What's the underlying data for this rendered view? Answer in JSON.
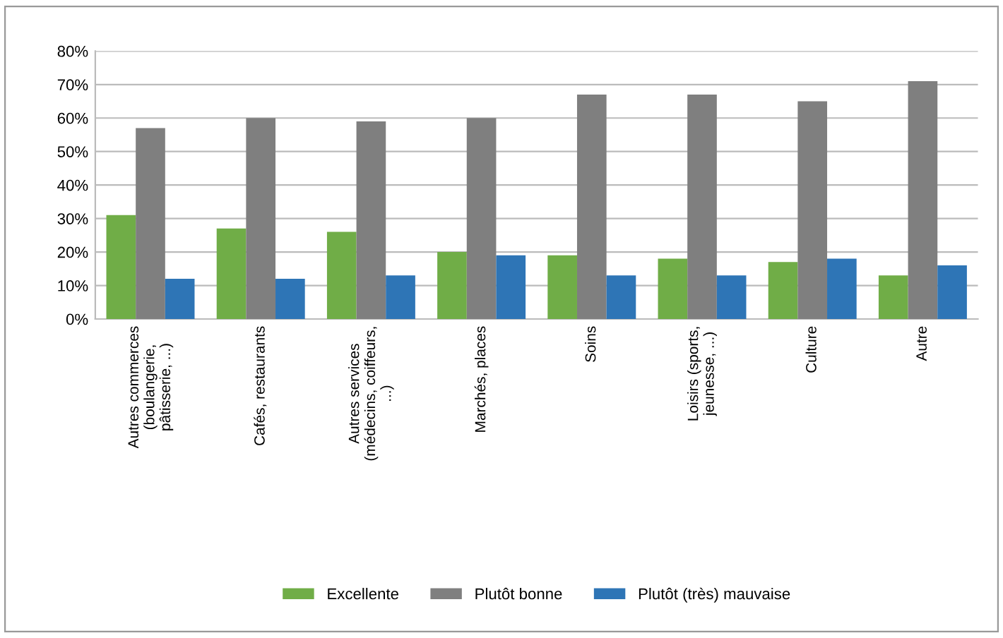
{
  "chart_data": {
    "type": "bar",
    "categories": [
      "Autres commerces (boulangerie, pâtisserie, ...)",
      "Cafés, restaurants",
      "Autres services (médecins, coiffeurs, ...)",
      "Marchés, places",
      "Soins",
      "Loisirs (sports, jeunesse, ...)",
      "Culture",
      "Autre"
    ],
    "series": [
      {
        "name": "Excellente",
        "color": "#70ad47",
        "values": [
          31,
          27,
          26,
          20,
          19,
          18,
          17,
          13
        ]
      },
      {
        "name": "Plutôt bonne",
        "color": "#7f7f7f",
        "values": [
          57,
          60,
          59,
          60,
          67,
          67,
          65,
          71
        ]
      },
      {
        "name": "Plutôt (très) mauvaise",
        "color": "#2e75b6",
        "values": [
          12,
          12,
          13,
          19,
          13,
          13,
          18,
          16
        ]
      }
    ],
    "ylim": [
      0,
      80
    ],
    "yticks": [
      {
        "value": 0,
        "label": "0%"
      },
      {
        "value": 10,
        "label": "10%"
      },
      {
        "value": 20,
        "label": "20%"
      },
      {
        "value": 30,
        "label": "30%"
      },
      {
        "value": 40,
        "label": "40%"
      },
      {
        "value": 50,
        "label": "50%"
      },
      {
        "value": 60,
        "label": "60%"
      },
      {
        "value": 70,
        "label": "70%"
      },
      {
        "value": 80,
        "label": "80%"
      }
    ],
    "grid": "y",
    "legend": "bottom"
  }
}
